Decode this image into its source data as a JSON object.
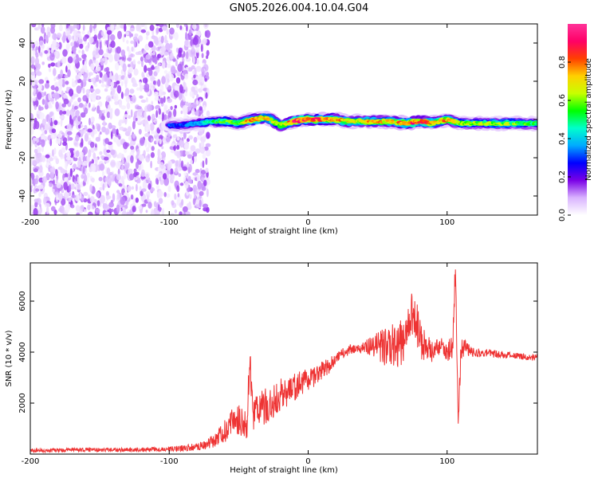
{
  "title": "GN05.2026.004.10.04.G04",
  "chart_data": [
    {
      "type": "heatmap",
      "xlabel": "Height of straight line (km)",
      "ylabel": "Frequency (Hz)",
      "xlim": [
        -200,
        165
      ],
      "ylim": [
        -50,
        50
      ],
      "xticks": [
        -200,
        -100,
        0,
        100
      ],
      "yticks": [
        -40,
        -20,
        0,
        20,
        40
      ],
      "colorbar": {
        "label": "Normalized spectral amplitude",
        "range": [
          0,
          1
        ],
        "ticks": [
          0.0,
          0.2,
          0.4,
          0.6,
          0.8
        ],
        "tick_labels": [
          "0.0",
          "0.2",
          "0.4",
          "0.6",
          "0.8"
        ],
        "stops": [
          "#ffffff",
          "#d9b3ff",
          "#7a00e6",
          "#0000ff",
          "#00aaff",
          "#00ffcc",
          "#00ff00",
          "#c8ff00",
          "#ffd000",
          "#ff4000",
          "#ff0066",
          "#ff3399"
        ]
      },
      "noise_region_x": [
        -200,
        -72
      ],
      "noise_amplitude_range": [
        0.02,
        0.16
      ],
      "signal_ridge": {
        "x": [
          -100,
          -90,
          -80,
          -70,
          -60,
          -50,
          -40,
          -30,
          -20,
          -10,
          0,
          10,
          20,
          30,
          40,
          50,
          60,
          70,
          80,
          90,
          100,
          110,
          120,
          130,
          140,
          150,
          160,
          165
        ],
        "frequency": [
          -3,
          -3,
          -2,
          -1,
          -1,
          -2,
          0,
          1,
          -3,
          -1,
          0,
          0,
          0,
          -1,
          -1,
          -1,
          -1,
          -2,
          -1,
          -2,
          0,
          -2,
          -2,
          -2,
          -2,
          -2,
          -2,
          -2
        ],
        "amplitude": [
          0.32,
          0.3,
          0.4,
          0.5,
          0.58,
          0.6,
          0.8,
          0.72,
          0.62,
          0.88,
          0.9,
          0.86,
          0.82,
          0.7,
          0.74,
          0.76,
          0.72,
          0.84,
          0.86,
          0.8,
          0.78,
          0.62,
          0.6,
          0.62,
          0.62,
          0.6,
          0.56,
          0.56
        ]
      }
    },
    {
      "type": "line",
      "xlabel": "Height of straight line (km)",
      "ylabel": "SNR (10 * v/v)",
      "xlim": [
        -200,
        165
      ],
      "ylim": [
        0,
        7500
      ],
      "xticks": [
        -200,
        -100,
        0,
        100
      ],
      "yticks": [
        2000,
        4000,
        6000
      ],
      "series": [
        {
          "color": "#ee3333",
          "x": [
            -200,
            -180,
            -160,
            -140,
            -120,
            -100,
            -90,
            -80,
            -72,
            -66,
            -60,
            -56,
            -52,
            -48,
            -44,
            -42,
            -40,
            -36,
            -30,
            -24,
            -20,
            -14,
            -10,
            -4,
            0,
            6,
            10,
            16,
            20,
            26,
            30,
            36,
            40,
            46,
            50,
            56,
            60,
            64,
            68,
            72,
            76,
            80,
            84,
            90,
            96,
            100,
            104,
            106,
            108,
            110,
            114,
            120,
            130,
            140,
            150,
            160,
            165
          ],
          "y": [
            150,
            150,
            170,
            160,
            180,
            200,
            230,
            280,
            400,
            600,
            900,
            1200,
            1400,
            1300,
            1200,
            3800,
            1500,
            1700,
            1900,
            2100,
            2300,
            2500,
            2600,
            2800,
            2900,
            3100,
            3300,
            3500,
            3800,
            4000,
            4100,
            4150,
            4200,
            4250,
            4200,
            4200,
            4250,
            4300,
            4400,
            4800,
            5800,
            4600,
            4200,
            4000,
            4300,
            4000,
            4200,
            7400,
            1000,
            4100,
            4150,
            4000,
            3950,
            3900,
            3850,
            3800,
            3800
          ],
          "noise_amplitude": [
            80,
            80,
            80,
            80,
            80,
            100,
            120,
            150,
            200,
            300,
            450,
            550,
            600,
            600,
            600,
            700,
            700,
            700,
            700,
            650,
            650,
            600,
            550,
            500,
            450,
            400,
            350,
            300,
            250,
            220,
            200,
            200,
            220,
            400,
            600,
            800,
            900,
            900,
            900,
            900,
            900,
            800,
            600,
            400,
            350,
            400,
            500,
            600,
            600,
            500,
            300,
            200,
            160,
            140,
            130,
            130,
            130
          ]
        }
      ]
    }
  ]
}
